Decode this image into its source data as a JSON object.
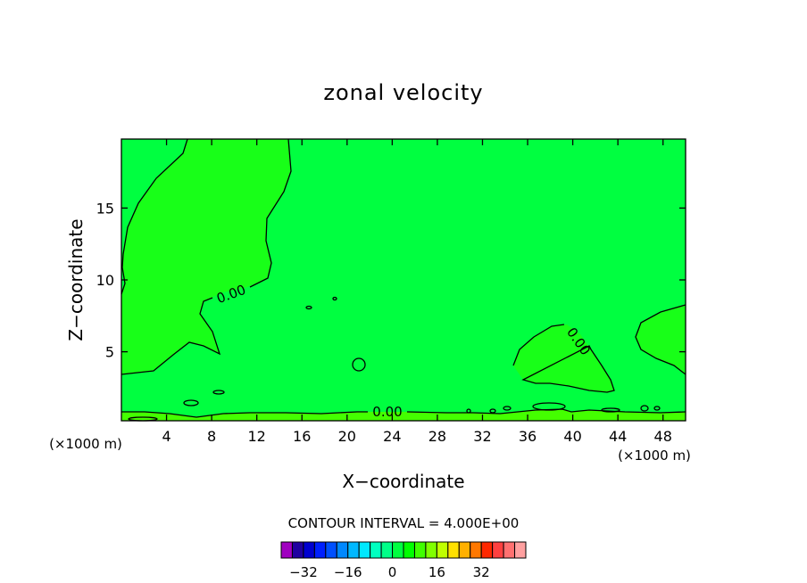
{
  "chart_data": {
    "type": "contour",
    "title": "zonal velocity",
    "xlabel": "X−coordinate",
    "ylabel": "Z−coordinate",
    "x_unit_left": "(×1000 m)",
    "x_unit_right": "(×1000 m)",
    "xlim": [
      0,
      50
    ],
    "ylim": [
      0.2,
      19.8
    ],
    "x_ticks": [
      4,
      8,
      12,
      16,
      20,
      24,
      28,
      32,
      36,
      40,
      44,
      48
    ],
    "y_ticks": [
      5,
      10,
      15
    ],
    "x_tick_labels": [
      "4",
      "8",
      "12",
      "16",
      "20",
      "24",
      "28",
      "32",
      "36",
      "40",
      "44",
      "48"
    ],
    "y_tick_labels": [
      "5",
      "10",
      "15"
    ],
    "contour_interval_text": "CONTOUR INTERVAL = 4.000E+00",
    "contour_labels": [
      "0.00",
      "0.00",
      "0.00"
    ],
    "background_fill": "#00ff40",
    "region_colors": {
      "negative_light": "#18ff18",
      "near_zero": "#00ff40",
      "positive_light": "#44ff00"
    },
    "colorbar": {
      "colors": [
        "#a000c0",
        "#2000a0",
        "#0000d0",
        "#0020ff",
        "#0050ff",
        "#0088ff",
        "#00b8ff",
        "#00e8ff",
        "#00ffc0",
        "#00ff88",
        "#00ff40",
        "#00ff00",
        "#40ff00",
        "#80ff00",
        "#c0ff00",
        "#ffe000",
        "#ffb000",
        "#ff7800",
        "#ff2800",
        "#ff4040",
        "#ff7070",
        "#ffa0a0"
      ],
      "tick_labels": [
        "−32",
        "−16",
        "0",
        "16",
        "32"
      ],
      "tick_values": [
        -32,
        -16,
        0,
        16,
        32
      ],
      "range": [
        -40,
        48
      ]
    }
  }
}
